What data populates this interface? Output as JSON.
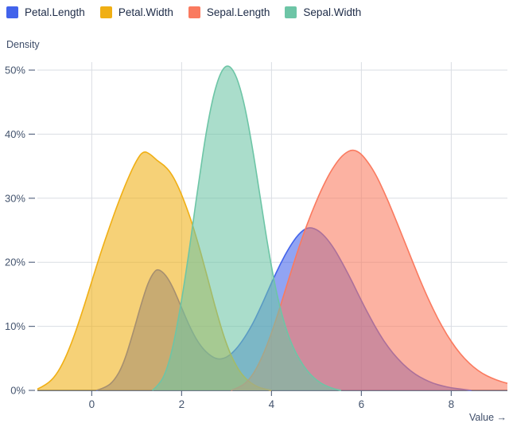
{
  "legend": {
    "items": [
      {
        "label": "Petal.Length",
        "color": "#4263eb"
      },
      {
        "label": "Petal.Width",
        "color": "#f0af14"
      },
      {
        "label": "Sepal.Length",
        "color": "#fa7a5f"
      },
      {
        "label": "Sepal.Width",
        "color": "#6dc5a6"
      }
    ]
  },
  "axes": {
    "y_title": "Density",
    "x_title": "Value →",
    "y_tick_labels": [
      "0%",
      "10%",
      "20%",
      "30%",
      "40%",
      "50%"
    ],
    "x_tick_labels": [
      "0",
      "2",
      "4",
      "6",
      "8"
    ]
  },
  "colors": {
    "background": "#ffffff",
    "grid": "#dadde3",
    "axis_line": "#3d4c66",
    "tick_text": "#44546e",
    "tick_dash": "#5d6b85",
    "legend_text": "#1d2b47"
  },
  "chart_data": {
    "type": "area",
    "variant": "kde-density",
    "title": "",
    "xlabel": "Value",
    "ylabel": "Density",
    "xlim": [
      -1.21,
      9.25
    ],
    "ylim": [
      0,
      50
    ],
    "grid": true,
    "legend_position": "top-left",
    "fill_opacity": 0.58,
    "x_ticks": [
      {
        "label": "0",
        "value": 0
      },
      {
        "label": "2",
        "value": 2
      },
      {
        "label": "4",
        "value": 4
      },
      {
        "label": "6",
        "value": 6
      },
      {
        "label": "8",
        "value": 8
      }
    ],
    "y_ticks": [
      {
        "label": "0%",
        "value": 0
      },
      {
        "label": "10%",
        "value": 10
      },
      {
        "label": "20%",
        "value": 20
      },
      {
        "label": "30%",
        "value": 30
      },
      {
        "label": "40%",
        "value": 40
      },
      {
        "label": "50%",
        "value": 50
      }
    ],
    "series": [
      {
        "name": "Petal.Length",
        "color": "#4263eb",
        "points": [
          [
            0.1,
            0
          ],
          [
            0.3,
            0.4
          ],
          [
            0.5,
            1.5
          ],
          [
            0.7,
            4.0
          ],
          [
            0.9,
            8.5
          ],
          [
            1.1,
            13.5
          ],
          [
            1.25,
            16.8
          ],
          [
            1.4,
            18.7
          ],
          [
            1.5,
            18.9
          ],
          [
            1.65,
            18.0
          ],
          [
            1.8,
            16.2
          ],
          [
            2.0,
            12.9
          ],
          [
            2.2,
            9.6
          ],
          [
            2.4,
            7.1
          ],
          [
            2.6,
            5.6
          ],
          [
            2.8,
            4.8
          ],
          [
            3.0,
            5.1
          ],
          [
            3.2,
            6.3
          ],
          [
            3.4,
            8.2
          ],
          [
            3.6,
            10.6
          ],
          [
            3.8,
            13.6
          ],
          [
            4.0,
            16.8
          ],
          [
            4.2,
            19.8
          ],
          [
            4.4,
            22.4
          ],
          [
            4.6,
            24.4
          ],
          [
            4.8,
            25.5
          ],
          [
            5.0,
            25.2
          ],
          [
            5.2,
            24.0
          ],
          [
            5.4,
            22.1
          ],
          [
            5.6,
            19.6
          ],
          [
            5.8,
            16.9
          ],
          [
            6.0,
            14.0
          ],
          [
            6.2,
            11.3
          ],
          [
            6.4,
            8.8
          ],
          [
            6.6,
            6.7
          ],
          [
            6.8,
            5.0
          ],
          [
            7.0,
            3.6
          ],
          [
            7.2,
            2.5
          ],
          [
            7.4,
            1.7
          ],
          [
            7.6,
            1.1
          ],
          [
            7.8,
            0.7
          ],
          [
            8.0,
            0.4
          ],
          [
            8.2,
            0.2
          ],
          [
            8.45,
            0
          ]
        ]
      },
      {
        "name": "Petal.Width",
        "color": "#f0af14",
        "points": [
          [
            -1.21,
            0.2
          ],
          [
            -1.0,
            0.9
          ],
          [
            -0.8,
            2.3
          ],
          [
            -0.6,
            4.8
          ],
          [
            -0.4,
            8.3
          ],
          [
            -0.2,
            12.5
          ],
          [
            0.0,
            17.0
          ],
          [
            0.2,
            21.5
          ],
          [
            0.4,
            25.6
          ],
          [
            0.6,
            29.5
          ],
          [
            0.8,
            33.0
          ],
          [
            1.0,
            36.0
          ],
          [
            1.15,
            37.4
          ],
          [
            1.3,
            36.9
          ],
          [
            1.45,
            35.9
          ],
          [
            1.6,
            35.2
          ],
          [
            1.75,
            34.1
          ],
          [
            1.9,
            32.2
          ],
          [
            2.05,
            29.7
          ],
          [
            2.2,
            26.8
          ],
          [
            2.35,
            23.4
          ],
          [
            2.5,
            19.6
          ],
          [
            2.65,
            15.6
          ],
          [
            2.8,
            11.7
          ],
          [
            2.95,
            8.2
          ],
          [
            3.1,
            5.4
          ],
          [
            3.25,
            3.4
          ],
          [
            3.4,
            2.0
          ],
          [
            3.55,
            1.1
          ],
          [
            3.7,
            0.5
          ],
          [
            3.85,
            0.2
          ],
          [
            4.0,
            0
          ]
        ]
      },
      {
        "name": "Sepal.Length",
        "color": "#fa7a5f",
        "points": [
          [
            3.1,
            0
          ],
          [
            3.3,
            0.5
          ],
          [
            3.5,
            1.6
          ],
          [
            3.7,
            3.8
          ],
          [
            3.9,
            7.0
          ],
          [
            4.1,
            11.0
          ],
          [
            4.3,
            15.5
          ],
          [
            4.5,
            20.0
          ],
          [
            4.7,
            24.2
          ],
          [
            4.9,
            27.9
          ],
          [
            5.1,
            31.2
          ],
          [
            5.3,
            34.0
          ],
          [
            5.5,
            36.1
          ],
          [
            5.65,
            37.1
          ],
          [
            5.8,
            37.6
          ],
          [
            5.95,
            37.2
          ],
          [
            6.1,
            36.1
          ],
          [
            6.3,
            34.0
          ],
          [
            6.5,
            31.1
          ],
          [
            6.7,
            27.8
          ],
          [
            6.9,
            24.3
          ],
          [
            7.1,
            20.8
          ],
          [
            7.3,
            17.3
          ],
          [
            7.5,
            14.1
          ],
          [
            7.7,
            11.2
          ],
          [
            7.9,
            8.7
          ],
          [
            8.1,
            6.6
          ],
          [
            8.3,
            4.9
          ],
          [
            8.5,
            3.6
          ],
          [
            8.7,
            2.6
          ],
          [
            8.9,
            1.9
          ],
          [
            9.1,
            1.4
          ],
          [
            9.25,
            1.1
          ]
        ]
      },
      {
        "name": "Sepal.Width",
        "color": "#6dc5a6",
        "points": [
          [
            1.35,
            0
          ],
          [
            1.5,
            0.9
          ],
          [
            1.65,
            2.8
          ],
          [
            1.8,
            6.5
          ],
          [
            1.95,
            12.0
          ],
          [
            2.1,
            18.5
          ],
          [
            2.25,
            26.0
          ],
          [
            2.4,
            33.5
          ],
          [
            2.55,
            40.5
          ],
          [
            2.7,
            45.9
          ],
          [
            2.85,
            49.4
          ],
          [
            3.0,
            50.9
          ],
          [
            3.15,
            50.1
          ],
          [
            3.3,
            47.4
          ],
          [
            3.45,
            42.9
          ],
          [
            3.6,
            36.9
          ],
          [
            3.75,
            30.1
          ],
          [
            3.9,
            23.3
          ],
          [
            4.05,
            17.3
          ],
          [
            4.2,
            12.6
          ],
          [
            4.35,
            9.0
          ],
          [
            4.5,
            6.4
          ],
          [
            4.65,
            4.5
          ],
          [
            4.8,
            3.0
          ],
          [
            4.95,
            1.9
          ],
          [
            5.1,
            1.1
          ],
          [
            5.25,
            0.6
          ],
          [
            5.4,
            0.2
          ],
          [
            5.55,
            0
          ]
        ]
      }
    ]
  }
}
